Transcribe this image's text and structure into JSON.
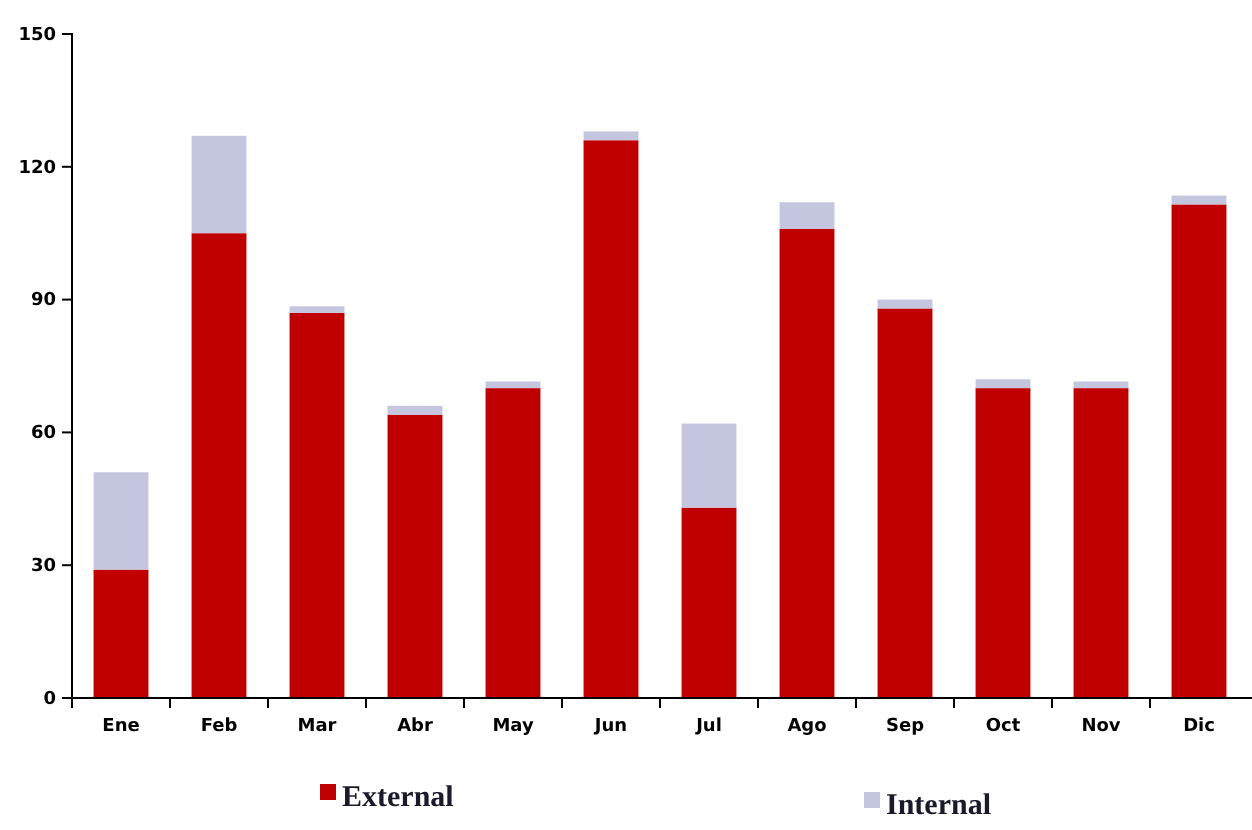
{
  "chart_data": {
    "type": "bar",
    "stacked": true,
    "categories": [
      "Ene",
      "Feb",
      "Mar",
      "Abr",
      "May",
      "Jun",
      "Jul",
      "Ago",
      "Sep",
      "Oct",
      "Nov",
      "Dic"
    ],
    "series": [
      {
        "name": "External",
        "color": "#c00000",
        "values": [
          29,
          105,
          87,
          64,
          70,
          126,
          43,
          106,
          88,
          70,
          70,
          111.5
        ]
      },
      {
        "name": "Internal",
        "color": "#c4c6e0",
        "values": [
          22,
          22,
          1.5,
          2,
          1.5,
          2,
          19,
          6,
          2,
          2,
          1.5,
          2
        ]
      }
    ],
    "ylim": [
      0,
      150
    ],
    "yticks": [
      0,
      30,
      60,
      90,
      120,
      150
    ],
    "grid": false,
    "legend": "bottom"
  }
}
